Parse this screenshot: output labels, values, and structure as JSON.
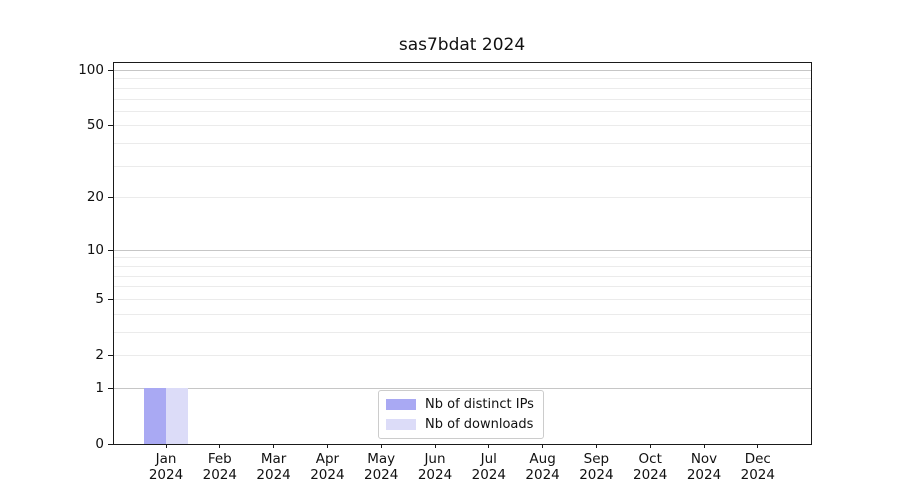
{
  "chart_data": {
    "type": "bar",
    "title": "sas7bdat 2024",
    "categories": [
      {
        "month": "Jan",
        "year": "2024"
      },
      {
        "month": "Feb",
        "year": "2024"
      },
      {
        "month": "Mar",
        "year": "2024"
      },
      {
        "month": "Apr",
        "year": "2024"
      },
      {
        "month": "May",
        "year": "2024"
      },
      {
        "month": "Jun",
        "year": "2024"
      },
      {
        "month": "Jul",
        "year": "2024"
      },
      {
        "month": "Aug",
        "year": "2024"
      },
      {
        "month": "Sep",
        "year": "2024"
      },
      {
        "month": "Oct",
        "year": "2024"
      },
      {
        "month": "Nov",
        "year": "2024"
      },
      {
        "month": "Dec",
        "year": "2024"
      }
    ],
    "series": [
      {
        "name": "Nb of distinct IPs",
        "color": "#a9a9f3",
        "values": [
          1,
          0,
          0,
          0,
          0,
          0,
          0,
          0,
          0,
          0,
          0,
          0
        ]
      },
      {
        "name": "Nb of downloads",
        "color": "#dcdcf8",
        "values": [
          1,
          0,
          0,
          0,
          0,
          0,
          0,
          0,
          0,
          0,
          0,
          0
        ]
      }
    ],
    "y_scale": "log1p",
    "y_ticks": [
      0,
      1,
      2,
      5,
      10,
      20,
      50,
      100
    ],
    "y_gridlines_major": [
      1,
      10,
      100
    ],
    "y_gridlines_minor": [
      2,
      3,
      4,
      5,
      6,
      7,
      8,
      9,
      20,
      30,
      40,
      50,
      60,
      70,
      80,
      90
    ],
    "y_range": [
      0,
      112
    ],
    "xlabel": "",
    "ylabel": "",
    "grid": "horizontal",
    "legend_position": "bottom-center",
    "colors": {
      "axis": "#1a1a1a",
      "grid_major": "#c6c6c6",
      "grid_minor": "#ebebeb",
      "background": "#ffffff"
    }
  }
}
